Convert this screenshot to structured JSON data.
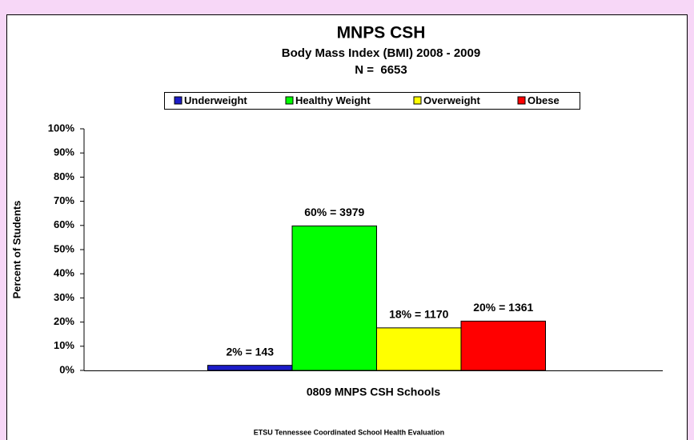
{
  "chart_data": {
    "type": "bar",
    "title": "MNPS CSH",
    "subtitle": [
      "Body Mass Index (BMI) 2008 - 2009",
      "N =  6653"
    ],
    "categories": [
      "0809 MNPS CSH Schools"
    ],
    "series": [
      {
        "name": "Underweight",
        "color": "#1c1cc8",
        "values": [
          2.1
        ],
        "value_labels": [
          "2% = 143"
        ]
      },
      {
        "name": "Healthy Weight",
        "color": "#00ff00",
        "values": [
          59.8
        ],
        "value_labels": [
          "60% = 3979"
        ]
      },
      {
        "name": "Overweight",
        "color": "#ffff00",
        "values": [
          17.6
        ],
        "value_labels": [
          "18% = 1170"
        ]
      },
      {
        "name": "Obese",
        "color": "#ff0000",
        "values": [
          20.4
        ],
        "value_labels": [
          "20% = 1361"
        ]
      }
    ],
    "y_label": "Percent of Students",
    "ylim": [
      0,
      100
    ],
    "yticks": [
      {
        "value": 0,
        "label": "0%"
      },
      {
        "value": 10,
        "label": "10%"
      },
      {
        "value": 20,
        "label": "20%"
      },
      {
        "value": 30,
        "label": "30%"
      },
      {
        "value": 40,
        "label": "40%"
      },
      {
        "value": 50,
        "label": "50%"
      },
      {
        "value": 60,
        "label": "60%"
      },
      {
        "value": 70,
        "label": "70%"
      },
      {
        "value": 80,
        "label": "80%"
      },
      {
        "value": 90,
        "label": "90%"
      },
      {
        "value": 100,
        "label": "100%"
      }
    ],
    "grid": false,
    "legend": "top",
    "footer": "ETSU Tennessee Coordinated School Health Evaluation"
  }
}
